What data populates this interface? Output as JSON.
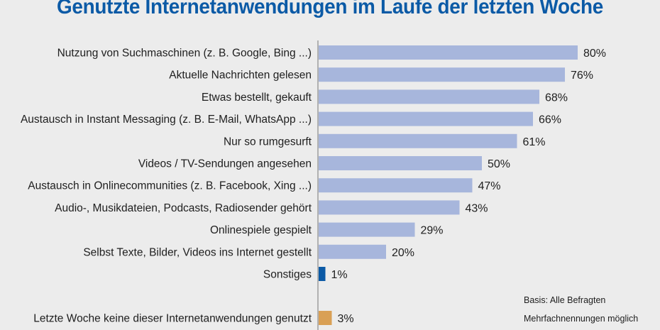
{
  "chart_data": {
    "type": "bar",
    "orientation": "horizontal",
    "title": "Genutzte Internetanwendungen im Laufe der letzten Woche",
    "unit": "%",
    "xlim": [
      0,
      100
    ],
    "grid": false,
    "categories": [
      "Nutzung von Suchmaschinen (z. B. Google, Bing ...)",
      "Aktuelle Nachrichten gelesen",
      "Etwas bestellt, gekauft",
      "Austausch in Instant Messaging (z. B. E-Mail, WhatsApp ...)",
      "Nur so rumgesurft",
      "Videos / TV-Sendungen angesehen",
      "Austausch in Onlinecommunities (z. B. Facebook, Xing ...)",
      "Audio-, Musikdateien, Podcasts, Radiosender gehört",
      "Onlinespiele gespielt",
      "Selbst Texte, Bilder, Videos ins Internet gestellt",
      "Sonstiges",
      "Letzte Woche keine dieser Internetanwendungen genutzt"
    ],
    "values": [
      80,
      76,
      68,
      66,
      61,
      50,
      47,
      43,
      29,
      20,
      1,
      3
    ],
    "value_labels": [
      "80%",
      "76%",
      "68%",
      "66%",
      "61%",
      "50%",
      "47%",
      "43%",
      "29%",
      "20%",
      "1%",
      "3%"
    ],
    "bar_colors": [
      "#a7b6dc",
      "#a7b6dc",
      "#a7b6dc",
      "#a7b6dc",
      "#a7b6dc",
      "#a7b6dc",
      "#a7b6dc",
      "#a7b6dc",
      "#a7b6dc",
      "#a7b6dc",
      "#0b5aa6",
      "#d9a055"
    ],
    "notes": [
      "Basis: Alle Befragten",
      "Mehrfachnennungen möglich"
    ]
  }
}
